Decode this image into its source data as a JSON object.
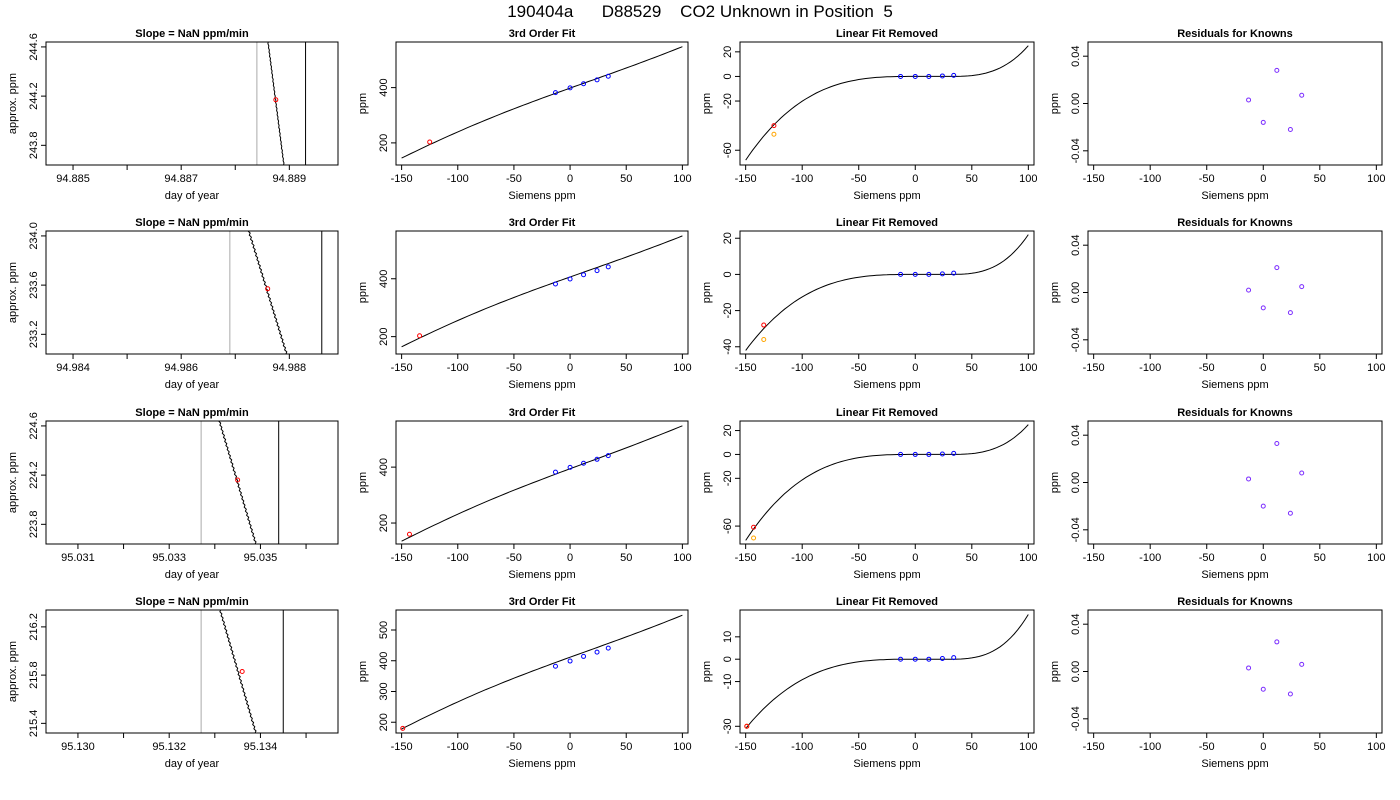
{
  "title": "190404a      D88529    CO2 Unknown in Position  5",
  "colors": {
    "axis": "#000000",
    "known": "#0000ff",
    "unknown": "#ff0000",
    "unknown_alt": "#ffa500",
    "residual": "#7b2cff",
    "marker": "#aaaaaa"
  },
  "chart_data": [
    {
      "type": "line",
      "row": 1,
      "panel": "slope",
      "title": "Slope =  NaN  ppm/min",
      "xlabel": "day of year",
      "ylabel": "approx. ppm",
      "xlim": [
        94.8845,
        94.8899
      ],
      "ylim": [
        243.64,
        244.64
      ],
      "xticks": [
        "94.885",
        "94.887",
        "94.889"
      ],
      "xtick_values": [
        94.885,
        94.887,
        94.889
      ],
      "yticks": [
        "243.8",
        "244.2",
        "244.6"
      ],
      "ytick_values": [
        243.8,
        244.2,
        244.6
      ],
      "vlines": [
        94.8884,
        94.8893
      ],
      "trace": {
        "x_start": 94.8886,
        "x_end": 94.8889,
        "y_start": 244.66,
        "y_end": 243.64
      },
      "point": {
        "x": 94.88875,
        "y": 244.17
      }
    },
    {
      "type": "line",
      "row": 1,
      "panel": "fit",
      "title": "3rd Order Fit",
      "xlabel": "Siemens ppm",
      "ylabel": "ppm",
      "xlim": [
        -155,
        105
      ],
      "ylim": [
        120,
        565
      ],
      "xticks": [
        "-150",
        "-100",
        "-50",
        "0",
        "50",
        "100"
      ],
      "xtick_values": [
        -150,
        -100,
        -50,
        0,
        50,
        100
      ],
      "yticks": [
        "200",
        "400"
      ],
      "ytick_values": [
        200,
        400
      ],
      "curve": {
        "x_from": -150,
        "x_to": 100,
        "y_from": 145,
        "y_to": 548
      },
      "knowns": {
        "x": [
          -13,
          0,
          12,
          24,
          34
        ],
        "y": [
          382,
          399,
          414,
          428,
          441
        ]
      },
      "unknown": {
        "x": [
          -125
        ],
        "y": [
          203
        ]
      }
    },
    {
      "type": "line",
      "row": 1,
      "panel": "linear_removed",
      "title": "Linear Fit Removed",
      "xlabel": "Siemens ppm",
      "ylabel": "ppm",
      "xlim": [
        -155,
        105
      ],
      "ylim": [
        -72,
        28
      ],
      "xticks": [
        "-150",
        "-100",
        "-50",
        "0",
        "50",
        "100"
      ],
      "xtick_values": [
        -150,
        -100,
        -50,
        0,
        50,
        100
      ],
      "yticks": [
        "-60",
        "-20",
        "0",
        "20"
      ],
      "ytick_values": [
        -60,
        -20,
        0,
        20
      ],
      "curve": {
        "x_from": -150,
        "x_to": 100,
        "y_at_min": -68,
        "y_at_max": 25
      },
      "knowns": {
        "x": [
          -13,
          0,
          12,
          24,
          34
        ],
        "y": [
          0,
          0,
          0,
          0.4,
          0.9
        ]
      },
      "unknown": {
        "x": [
          -125
        ],
        "y": [
          -40
        ]
      },
      "unknown_alt": {
        "x": [
          -125
        ],
        "y": [
          -47
        ]
      }
    },
    {
      "type": "scatter",
      "row": 1,
      "panel": "residuals",
      "title": "Residuals for Knowns",
      "xlabel": "Siemens ppm",
      "ylabel": "ppm",
      "xlim": [
        -155,
        105
      ],
      "ylim": [
        -0.052,
        0.052
      ],
      "xticks": [
        "-150",
        "-100",
        "-50",
        "0",
        "50",
        "100"
      ],
      "xtick_values": [
        -150,
        -100,
        -50,
        0,
        50,
        100
      ],
      "yticks": [
        "-0.04",
        "0.00",
        "0.04"
      ],
      "ytick_values": [
        -0.04,
        0,
        0.04
      ],
      "points": {
        "x": [
          -13,
          0,
          12,
          24,
          34
        ],
        "y": [
          0.003,
          -0.016,
          0.028,
          -0.022,
          0.007
        ]
      }
    },
    {
      "type": "line",
      "row": 2,
      "panel": "slope",
      "title": "Slope =  NaN  ppm/min",
      "xlabel": "day of year",
      "ylabel": "approx. ppm",
      "xlim": [
        94.9835,
        94.9889
      ],
      "ylim": [
        233.04,
        234.04
      ],
      "xticks": [
        "94.984",
        "94.986",
        "94.988"
      ],
      "xtick_values": [
        94.984,
        94.986,
        94.988
      ],
      "yticks": [
        "233.2",
        "233.6",
        "234.0"
      ],
      "ytick_values": [
        233.2,
        233.6,
        234.0
      ],
      "vlines": [
        94.9869,
        94.9886
      ],
      "trace": {
        "x_start": 94.98725,
        "x_end": 94.98795,
        "y_start": 234.04,
        "y_end": 233.04
      },
      "point": {
        "x": 94.9876,
        "y": 233.57
      }
    },
    {
      "type": "line",
      "row": 2,
      "panel": "fit",
      "title": "3rd Order Fit",
      "xlabel": "Siemens ppm",
      "ylabel": "ppm",
      "xlim": [
        -155,
        105
      ],
      "ylim": [
        140,
        565
      ],
      "xticks": [
        "-150",
        "-100",
        "-50",
        "0",
        "50",
        "100"
      ],
      "xtick_values": [
        -150,
        -100,
        -50,
        0,
        50,
        100
      ],
      "yticks": [
        "200",
        "400"
      ],
      "ytick_values": [
        200,
        400
      ],
      "curve": {
        "x_from": -150,
        "x_to": 100,
        "y_from": 165,
        "y_to": 548
      },
      "knowns": {
        "x": [
          -13,
          0,
          12,
          24,
          34
        ],
        "y": [
          382,
          399,
          414,
          428,
          441
        ]
      },
      "unknown": {
        "x": [
          -134
        ],
        "y": [
          203
        ]
      }
    },
    {
      "type": "line",
      "row": 2,
      "panel": "linear_removed",
      "title": "Linear Fit Removed",
      "xlabel": "Siemens ppm",
      "ylabel": "ppm",
      "xlim": [
        -155,
        105
      ],
      "ylim": [
        -44,
        24
      ],
      "xticks": [
        "-150",
        "-100",
        "-50",
        "0",
        "50",
        "100"
      ],
      "xtick_values": [
        -150,
        -100,
        -50,
        0,
        50,
        100
      ],
      "yticks": [
        "-40",
        "-20",
        "0",
        "20"
      ],
      "ytick_values": [
        -40,
        -20,
        0,
        20
      ],
      "curve": {
        "x_from": -150,
        "x_to": 100,
        "y_at_min": -42,
        "y_at_max": 22
      },
      "knowns": {
        "x": [
          -13,
          0,
          12,
          24,
          34
        ],
        "y": [
          0,
          0,
          0,
          0.3,
          0.7
        ]
      },
      "unknown": {
        "x": [
          -134
        ],
        "y": [
          -28
        ]
      },
      "unknown_alt": {
        "x": [
          -134
        ],
        "y": [
          -36
        ]
      }
    },
    {
      "type": "scatter",
      "row": 2,
      "panel": "residuals",
      "title": "Residuals for Knowns",
      "xlabel": "Siemens ppm",
      "ylabel": "ppm",
      "xlim": [
        -155,
        105
      ],
      "ylim": [
        -0.052,
        0.052
      ],
      "xticks": [
        "-150",
        "-100",
        "-50",
        "0",
        "50",
        "100"
      ],
      "xtick_values": [
        -150,
        -100,
        -50,
        0,
        50,
        100
      ],
      "yticks": [
        "-0.04",
        "0.00",
        "0.04"
      ],
      "ytick_values": [
        -0.04,
        0,
        0.04
      ],
      "points": {
        "x": [
          -13,
          0,
          12,
          24,
          34
        ],
        "y": [
          0.002,
          -0.013,
          0.021,
          -0.017,
          0.005
        ]
      }
    },
    {
      "type": "line",
      "row": 3,
      "panel": "slope",
      "title": "Slope =  NaN  ppm/min",
      "xlabel": "day of year",
      "ylabel": "approx. ppm",
      "xlim": [
        95.0303,
        95.0367
      ],
      "ylim": [
        223.64,
        224.64
      ],
      "xticks": [
        "95.031",
        "95.033",
        "95.035"
      ],
      "xtick_values": [
        95.031,
        95.033,
        95.035
      ],
      "yticks": [
        "223.8",
        "224.2",
        "224.6"
      ],
      "ytick_values": [
        223.8,
        224.2,
        224.6
      ],
      "vlines": [
        95.0337,
        95.0354
      ],
      "trace": {
        "x_start": 95.0341,
        "x_end": 95.0349,
        "y_start": 224.64,
        "y_end": 223.64
      },
      "point": {
        "x": 95.0345,
        "y": 224.16
      }
    },
    {
      "type": "line",
      "row": 3,
      "panel": "fit",
      "title": "3rd Order Fit",
      "xlabel": "Siemens ppm",
      "ylabel": "ppm",
      "xlim": [
        -155,
        105
      ],
      "ylim": [
        125,
        565
      ],
      "xticks": [
        "-150",
        "-100",
        "-50",
        "0",
        "50",
        "100"
      ],
      "xtick_values": [
        -150,
        -100,
        -50,
        0,
        50,
        100
      ],
      "yticks": [
        "200",
        "400"
      ],
      "ytick_values": [
        200,
        400
      ],
      "curve": {
        "x_from": -150,
        "x_to": 100,
        "y_from": 135,
        "y_to": 548
      },
      "knowns": {
        "x": [
          -13,
          0,
          12,
          24,
          34
        ],
        "y": [
          382,
          399,
          414,
          428,
          441
        ]
      },
      "unknown": {
        "x": [
          -143
        ],
        "y": [
          160
        ]
      }
    },
    {
      "type": "line",
      "row": 3,
      "panel": "linear_removed",
      "title": "Linear Fit Removed",
      "xlabel": "Siemens ppm",
      "ylabel": "ppm",
      "xlim": [
        -155,
        105
      ],
      "ylim": [
        -75,
        28
      ],
      "xticks": [
        "-150",
        "-100",
        "-50",
        "0",
        "50",
        "100"
      ],
      "xtick_values": [
        -150,
        -100,
        -50,
        0,
        50,
        100
      ],
      "yticks": [
        "-60",
        "-20",
        "0",
        "20"
      ],
      "ytick_values": [
        -60,
        -20,
        0,
        20
      ],
      "curve": {
        "x_from": -150,
        "x_to": 100,
        "y_at_min": -72,
        "y_at_max": 25
      },
      "knowns": {
        "x": [
          -13,
          0,
          12,
          24,
          34
        ],
        "y": [
          0,
          0,
          0,
          0.4,
          0.9
        ]
      },
      "unknown": {
        "x": [
          -143
        ],
        "y": [
          -61
        ]
      },
      "unknown_alt": {
        "x": [
          -143
        ],
        "y": [
          -70
        ]
      }
    },
    {
      "type": "scatter",
      "row": 3,
      "panel": "residuals",
      "title": "Residuals for Knowns",
      "xlabel": "Siemens ppm",
      "ylabel": "ppm",
      "xlim": [
        -155,
        105
      ],
      "ylim": [
        -0.052,
        0.052
      ],
      "xticks": [
        "-150",
        "-100",
        "-50",
        "0",
        "50",
        "100"
      ],
      "xtick_values": [
        -150,
        -100,
        -50,
        0,
        50,
        100
      ],
      "yticks": [
        "-0.04",
        "0.00",
        "0.04"
      ],
      "ytick_values": [
        -0.04,
        0,
        0.04
      ],
      "points": {
        "x": [
          -13,
          0,
          12,
          24,
          34
        ],
        "y": [
          0.003,
          -0.02,
          0.033,
          -0.026,
          0.008
        ]
      }
    },
    {
      "type": "line",
      "row": 4,
      "panel": "slope",
      "title": "Slope =  NaN  ppm/min",
      "xlabel": "day of year",
      "ylabel": "approx. ppm",
      "xlim": [
        95.1293,
        95.1357
      ],
      "ylim": [
        215.32,
        216.34
      ],
      "xticks": [
        "95.130",
        "95.132",
        "95.134"
      ],
      "xtick_values": [
        95.13,
        95.132,
        95.134
      ],
      "yticks": [
        "215.4",
        "215.8",
        "216.2"
      ],
      "ytick_values": [
        215.4,
        215.8,
        216.2
      ],
      "vlines": [
        95.1327,
        95.1345
      ],
      "trace": {
        "x_start": 95.1331,
        "x_end": 95.1339,
        "y_start": 216.36,
        "y_end": 215.32
      },
      "point": {
        "x": 95.1336,
        "y": 215.83
      }
    },
    {
      "type": "line",
      "row": 4,
      "panel": "fit",
      "title": "3rd Order Fit",
      "xlabel": "Siemens ppm",
      "ylabel": "ppm",
      "xlim": [
        -155,
        105
      ],
      "ylim": [
        165,
        565
      ],
      "xticks": [
        "-150",
        "-100",
        "-50",
        "0",
        "50",
        "100"
      ],
      "xtick_values": [
        -150,
        -100,
        -50,
        0,
        50,
        100
      ],
      "yticks": [
        "200",
        "300",
        "400",
        "500"
      ],
      "ytick_values": [
        200,
        300,
        400,
        500
      ],
      "curve": {
        "x_from": -150,
        "x_to": 100,
        "y_from": 178,
        "y_to": 548
      },
      "knowns": {
        "x": [
          -13,
          0,
          12,
          24,
          34
        ],
        "y": [
          382,
          399,
          414,
          428,
          441
        ]
      },
      "unknown": {
        "x": [
          -149
        ],
        "y": [
          180
        ]
      }
    },
    {
      "type": "line",
      "row": 4,
      "panel": "linear_removed",
      "title": "Linear Fit Removed",
      "xlabel": "Siemens ppm",
      "ylabel": "ppm",
      "xlim": [
        -155,
        105
      ],
      "ylim": [
        -33,
        22
      ],
      "xticks": [
        "-150",
        "-100",
        "-50",
        "0",
        "50",
        "100"
      ],
      "xtick_values": [
        -150,
        -100,
        -50,
        0,
        50,
        100
      ],
      "yticks": [
        "-30",
        "-10",
        "0",
        "10"
      ],
      "ytick_values": [
        -30,
        -10,
        0,
        10
      ],
      "curve": {
        "x_from": -150,
        "x_to": 100,
        "y_at_min": -31,
        "y_at_max": 20
      },
      "knowns": {
        "x": [
          -13,
          0,
          12,
          24,
          34
        ],
        "y": [
          0,
          0,
          0,
          0.3,
          0.7
        ]
      },
      "unknown": {
        "x": [
          -149
        ],
        "y": [
          -30
        ]
      },
      "unknown_alt": {
        "x": [
          -149
        ],
        "y": [
          -30
        ]
      }
    },
    {
      "type": "scatter",
      "row": 4,
      "panel": "residuals",
      "title": "Residuals for Knowns",
      "xlabel": "Siemens ppm",
      "ylabel": "ppm",
      "xlim": [
        -155,
        105
      ],
      "ylim": [
        -0.052,
        0.052
      ],
      "xticks": [
        "-150",
        "-100",
        "-50",
        "0",
        "50",
        "100"
      ],
      "xtick_values": [
        -150,
        -100,
        -50,
        0,
        50,
        100
      ],
      "yticks": [
        "-0.04",
        "0.00",
        "0.04"
      ],
      "ytick_values": [
        -0.04,
        0,
        0.04
      ],
      "points": {
        "x": [
          -13,
          0,
          12,
          24,
          34
        ],
        "y": [
          0.003,
          -0.015,
          0.025,
          -0.019,
          0.006
        ]
      }
    }
  ]
}
